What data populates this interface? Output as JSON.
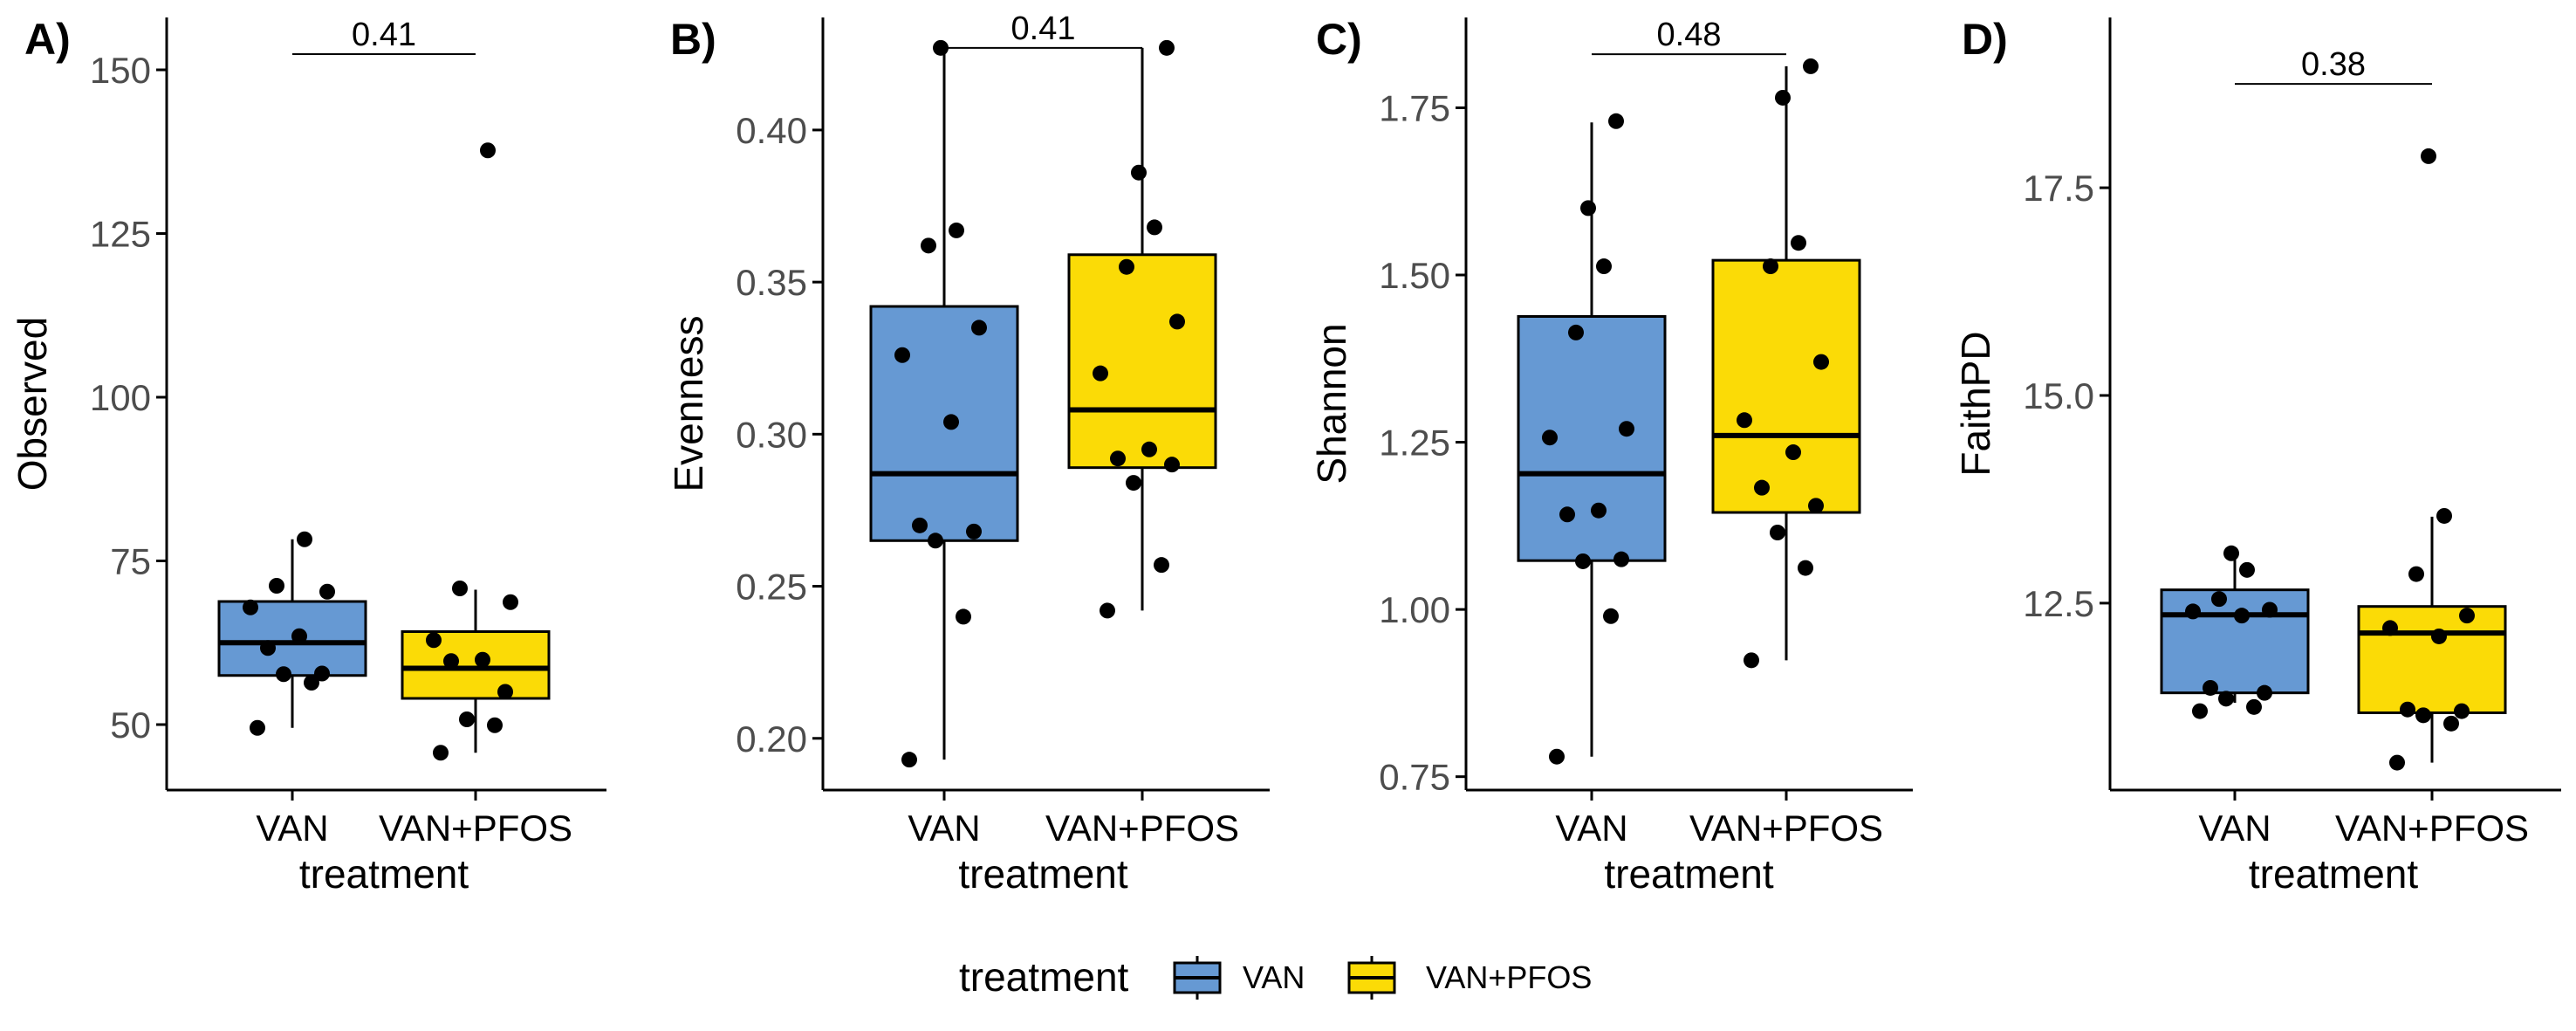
{
  "chart_data": [
    {
      "type": "box",
      "panel_label": "A)",
      "xlabel": "treatment",
      "ylabel": "Observed",
      "ylim": [
        40,
        158
      ],
      "yticks": [
        50,
        75,
        100,
        125,
        150
      ],
      "ytick_labels": [
        "50",
        "75",
        "100",
        "125",
        "150"
      ],
      "categories": [
        "VAN",
        "VAN+PFOS"
      ],
      "boxes": [
        {
          "group": "VAN",
          "whisker_low": 49.5,
          "q1": 57.5,
          "median": 62.5,
          "q3": 68.8,
          "whisker_high": 78.3
        },
        {
          "group": "VAN+PFOS",
          "whisker_low": 45.7,
          "q1": 54,
          "median": 58.6,
          "q3": 64.2,
          "whisker_high": 70.6
        }
      ],
      "points": [
        {
          "group": "VAN",
          "values": [
            49.5,
            56.4,
            57.7,
            57.8,
            61.7,
            63.5,
            67.9,
            70.3,
            71.2,
            78.3
          ]
        },
        {
          "group": "VAN+PFOS",
          "values": [
            45.7,
            49.9,
            50.8,
            55,
            59.7,
            59.9,
            62.9,
            68.7,
            70.8,
            137.7
          ]
        }
      ],
      "comparison": {
        "groups": [
          "VAN",
          "VAN+PFOS"
        ],
        "label": "0.41",
        "y": 152.4
      }
    },
    {
      "type": "box",
      "panel_label": "B)",
      "xlabel": "treatment",
      "ylabel": "Evenness",
      "ylim": [
        0.183,
        0.437
      ],
      "yticks": [
        0.2,
        0.25,
        0.3,
        0.35,
        0.4
      ],
      "ytick_labels": [
        "0.20",
        "0.25",
        "0.30",
        "0.35",
        "0.40"
      ],
      "categories": [
        "VAN",
        "VAN+PFOS"
      ],
      "boxes": [
        {
          "group": "VAN",
          "whisker_low": 0.193,
          "q1": 0.265,
          "median": 0.287,
          "q3": 0.342,
          "whisker_high": 0.427
        },
        {
          "group": "VAN+PFOS",
          "whisker_low": 0.242,
          "q1": 0.289,
          "median": 0.308,
          "q3": 0.359,
          "whisker_high": 0.427
        }
      ],
      "points": [
        {
          "group": "VAN",
          "values": [
            0.193,
            0.24,
            0.265,
            0.268,
            0.27,
            0.304,
            0.326,
            0.335,
            0.362,
            0.367,
            0.427
          ]
        },
        {
          "group": "VAN+PFOS",
          "values": [
            0.242,
            0.257,
            0.284,
            0.29,
            0.292,
            0.295,
            0.32,
            0.337,
            0.355,
            0.368,
            0.386,
            0.427
          ]
        }
      ],
      "comparison": {
        "groups": [
          "VAN",
          "VAN+PFOS"
        ],
        "label": "0.41",
        "y": 0.427
      }
    },
    {
      "type": "box",
      "panel_label": "C)",
      "xlabel": "treatment",
      "ylabel": "Shannon",
      "ylim": [
        0.73,
        1.885
      ],
      "yticks": [
        0.75,
        1.0,
        1.25,
        1.5,
        1.75
      ],
      "ytick_labels": [
        "0.75",
        "1.00",
        "1.25",
        "1.50",
        "1.75"
      ],
      "categories": [
        "VAN",
        "VAN+PFOS"
      ],
      "boxes": [
        {
          "group": "VAN",
          "whisker_low": 0.78,
          "q1": 1.073,
          "median": 1.203,
          "q3": 1.438,
          "whisker_high": 1.728
        },
        {
          "group": "VAN+PFOS",
          "whisker_low": 0.924,
          "q1": 1.145,
          "median": 1.26,
          "q3": 1.522,
          "whisker_high": 1.812
        }
      ],
      "points": [
        {
          "group": "VAN",
          "values": [
            0.78,
            0.99,
            1.072,
            1.075,
            1.142,
            1.148,
            1.257,
            1.27,
            1.414,
            1.513,
            1.6,
            1.73
          ]
        },
        {
          "group": "VAN+PFOS",
          "values": [
            0.924,
            1.062,
            1.115,
            1.155,
            1.182,
            1.235,
            1.283,
            1.37,
            1.513,
            1.548,
            1.765,
            1.812
          ]
        }
      ],
      "comparison": {
        "groups": [
          "VAN",
          "VAN+PFOS"
        ],
        "label": "0.48",
        "y": 1.83
      }
    },
    {
      "type": "box",
      "panel_label": "D)",
      "xlabel": "treatment",
      "ylabel": "FaithPD",
      "ylim": [
        10.25,
        19.55
      ],
      "yticks": [
        12.5,
        15.0,
        17.5
      ],
      "ytick_labels": [
        "12.5",
        "15.0",
        "17.5"
      ],
      "categories": [
        "VAN",
        "VAN+PFOS"
      ],
      "boxes": [
        {
          "group": "VAN",
          "whisker_low": 11.3,
          "q1": 11.42,
          "median": 12.36,
          "q3": 12.66,
          "whisker_high": 13.08
        },
        {
          "group": "VAN+PFOS",
          "whisker_low": 10.58,
          "q1": 11.18,
          "median": 12.14,
          "q3": 12.46,
          "whisker_high": 13.54
        }
      ],
      "points": [
        {
          "group": "VAN",
          "values": [
            11.2,
            11.25,
            11.35,
            11.42,
            11.48,
            12.35,
            12.4,
            12.42,
            12.55,
            12.9,
            13.1
          ]
        },
        {
          "group": "VAN+PFOS",
          "values": [
            10.58,
            11.05,
            11.15,
            11.2,
            11.22,
            12.1,
            12.2,
            12.35,
            12.85,
            13.55,
            17.88
          ]
        }
      ],
      "comparison": {
        "groups": [
          "VAN",
          "VAN+PFOS"
        ],
        "label": "0.38",
        "y": 18.75
      }
    }
  ],
  "legend": {
    "title": "treatment",
    "entries": [
      {
        "label": "VAN",
        "color": "#6699d3"
      },
      {
        "label": "VAN+PFOS",
        "color": "#fbdb06"
      }
    ]
  },
  "colors": {
    "VAN": "#6699d3",
    "VAN+PFOS": "#fbdb06",
    "outline": "#000000",
    "axis": "#000000",
    "tick_text": "#4d4d4d"
  }
}
